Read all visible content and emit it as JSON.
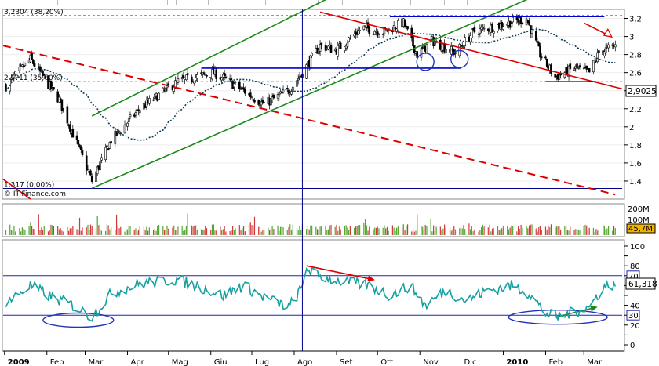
{
  "chart_data": [
    {
      "type": "candlestick",
      "title": "",
      "xlabel": "",
      "ylabel": "",
      "ylim": [
        1.2,
        3.3
      ],
      "y_ticks": [
        1.4,
        1.6,
        1.8,
        2,
        2.2,
        2.4,
        2.6,
        2.8,
        3,
        3.2
      ],
      "x_ticks": [
        "2009",
        "Feb",
        "Mar",
        "Apr",
        "Mag",
        "Giu",
        "Lug",
        "Ago",
        "Set",
        "Ott",
        "Nov",
        "Dic",
        "2010",
        "Feb",
        "Mar"
      ],
      "close_anchors": [
        [
          "2009-01-02",
          2.45
        ],
        [
          "2009-01-20",
          2.75
        ],
        [
          "2009-02-10",
          2.3
        ],
        [
          "2009-03-06",
          1.4
        ],
        [
          "2009-03-20",
          1.85
        ],
        [
          "2009-04-10",
          2.2
        ],
        [
          "2009-05-08",
          2.5
        ],
        [
          "2009-06-03",
          2.6
        ],
        [
          "2009-06-20",
          2.45
        ],
        [
          "2009-07-10",
          2.25
        ],
        [
          "2009-07-28",
          2.4
        ],
        [
          "2009-08-07",
          2.6
        ],
        [
          "2009-08-20",
          2.9
        ],
        [
          "2009-09-01",
          2.85
        ],
        [
          "2009-09-20",
          3.1
        ],
        [
          "2009-10-05",
          3.05
        ],
        [
          "2009-10-20",
          3.15
        ],
        [
          "2009-10-30",
          2.8
        ],
        [
          "2009-11-10",
          2.95
        ],
        [
          "2009-11-27",
          2.82
        ],
        [
          "2009-12-10",
          3.05
        ],
        [
          "2010-01-05",
          3.15
        ],
        [
          "2010-01-18",
          3.2
        ],
        [
          "2010-01-28",
          2.8
        ],
        [
          "2010-02-08",
          2.55
        ],
        [
          "2010-02-22",
          2.65
        ],
        [
          "2010-03-05",
          2.6
        ],
        [
          "2010-03-12",
          2.82
        ],
        [
          "2010-03-24",
          2.9
        ]
      ],
      "last_price": "2,9025",
      "fib_levels": [
        {
          "label": "3,2304 (38,20%)",
          "value": 3.2304
        },
        {
          "label": "2,5?11 (35,60%)",
          "value": 2.5
        },
        {
          "label": "1,317 (0,00%)",
          "value": 1.317
        }
      ],
      "trendlines": [
        {
          "name": "resistance",
          "color": "#dd0000",
          "style": "solid",
          "points": [
            [
              "2009-08-20",
              3.27
            ],
            [
              "2010-03-29",
              2.42
            ]
          ]
        },
        {
          "name": "long-term resistance",
          "color": "#dd0000",
          "style": "dashed",
          "points": [
            [
              "2008-12-31",
              2.9
            ],
            [
              "2010-03-24",
              1.25
            ]
          ]
        },
        {
          "name": "channel upper",
          "color": "#1a8a1a",
          "style": "solid",
          "points": [
            [
              "2009-03-06",
              2.12
            ],
            [
              "2009-09-08",
              3.52
            ]
          ]
        },
        {
          "name": "channel lower",
          "color": "#1a8a1a",
          "style": "solid",
          "points": [
            [
              "2009-03-06",
              1.32
            ],
            [
              "2010-01-20",
              3.42
            ]
          ]
        },
        {
          "name": "top",
          "color": "#0000cc",
          "style": "solid",
          "points": [
            [
              "2009-10-10",
              3.22
            ],
            [
              "2010-03-16",
              3.22
            ]
          ]
        },
        {
          "name": "support",
          "color": "#0000cc",
          "style": "solid",
          "points": [
            [
              "2010-02-01",
              2.5
            ],
            [
              "2010-03-10",
              2.5
            ]
          ]
        },
        {
          "name": "neckline",
          "color": "#0000cc",
          "style": "solid",
          "points": [
            [
              "2009-05-25",
              2.65
            ],
            [
              "2009-12-01",
              2.65
            ]
          ]
        }
      ]
    },
    {
      "type": "bar",
      "title": "",
      "ylabel": "",
      "y_ticks": [
        "200M",
        "100M"
      ],
      "last_value": "45,7M",
      "ylim": [
        0,
        220
      ]
    },
    {
      "type": "line",
      "title": "",
      "ylim": [
        0,
        100
      ],
      "y_ticks": [
        0,
        10,
        20,
        30,
        40,
        50,
        60,
        70,
        80,
        90,
        100
      ],
      "levels": [
        70,
        30
      ],
      "last_value": "61,318",
      "anchors": [
        [
          "2009-01-02",
          42
        ],
        [
          "2009-01-20",
          60
        ],
        [
          "2009-02-05",
          48
        ],
        [
          "2009-02-20",
          40
        ],
        [
          "2009-03-06",
          28
        ],
        [
          "2009-03-20",
          52
        ],
        [
          "2009-04-10",
          62
        ],
        [
          "2009-05-08",
          66
        ],
        [
          "2009-05-25",
          58
        ],
        [
          "2009-06-10",
          50
        ],
        [
          "2009-06-25",
          60
        ],
        [
          "2009-07-10",
          48
        ],
        [
          "2009-07-28",
          38
        ],
        [
          "2009-08-07",
          58
        ],
        [
          "2009-08-10",
          78
        ],
        [
          "2009-08-18",
          70
        ],
        [
          "2009-09-05",
          64
        ],
        [
          "2009-09-25",
          60
        ],
        [
          "2009-10-10",
          50
        ],
        [
          "2009-10-25",
          60
        ],
        [
          "2009-11-05",
          40
        ],
        [
          "2009-11-20",
          55
        ],
        [
          "2009-12-05",
          45
        ],
        [
          "2009-12-20",
          55
        ],
        [
          "2010-01-08",
          60
        ],
        [
          "2010-01-20",
          52
        ],
        [
          "2010-02-01",
          32
        ],
        [
          "2010-02-10",
          28
        ],
        [
          "2010-02-25",
          35
        ],
        [
          "2010-03-05",
          38
        ],
        [
          "2010-03-15",
          58
        ],
        [
          "2010-03-24",
          62
        ]
      ],
      "arrows": [
        {
          "color": "#dd0000",
          "points": [
            [
              "2009-08-10",
              80
            ],
            [
              "2009-09-28",
              66
            ]
          ]
        },
        {
          "color": "#1a8a1a",
          "points": [
            [
              "2010-02-08",
              28
            ],
            [
              "2010-03-10",
              38
            ]
          ]
        }
      ],
      "circles": [
        {
          "center": [
            "2009-02-24",
            25
          ]
        },
        {
          "center": [
            "2010-02-10",
            28
          ]
        }
      ]
    }
  ],
  "watermark": "IT-Finance.com"
}
